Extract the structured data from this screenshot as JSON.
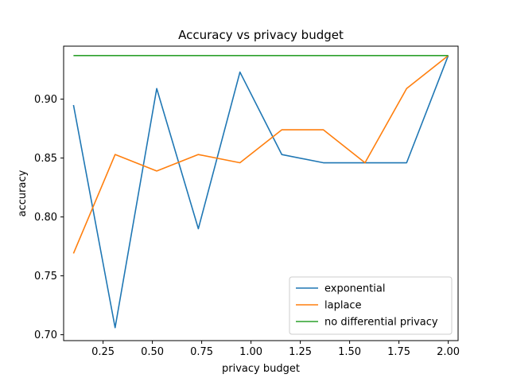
{
  "chart_data": {
    "type": "line",
    "title": "Accuracy vs privacy budget",
    "xlabel": "privacy budget",
    "ylabel": "accuracy",
    "xlim": [
      0.05,
      2.05
    ],
    "ylim": [
      0.695,
      0.945
    ],
    "x_ticks": [
      "0.25",
      "0.50",
      "0.75",
      "1.00",
      "1.25",
      "1.50",
      "1.75",
      "2.00"
    ],
    "y_ticks": [
      "0.70",
      "0.75",
      "0.80",
      "0.85",
      "0.90"
    ],
    "x": [
      0.1,
      0.311,
      0.522,
      0.733,
      0.944,
      1.156,
      1.367,
      1.578,
      1.789,
      2.0
    ],
    "series": [
      {
        "name": "exponential",
        "color": "#1f77b4",
        "values": [
          0.895,
          0.706,
          0.909,
          0.79,
          0.923,
          0.853,
          0.846,
          0.846,
          0.846,
          0.937
        ]
      },
      {
        "name": "laplace",
        "color": "#ff7f0e",
        "values": [
          0.769,
          0.853,
          0.839,
          0.853,
          0.846,
          0.874,
          0.874,
          0.846,
          0.909,
          0.937
        ]
      },
      {
        "name": "no differential privacy",
        "color": "#2ca02c",
        "values": [
          0.937,
          0.937,
          0.937,
          0.937,
          0.937,
          0.937,
          0.937,
          0.937,
          0.937,
          0.937
        ]
      }
    ],
    "legend_position": "lower-right",
    "grid": false
  }
}
